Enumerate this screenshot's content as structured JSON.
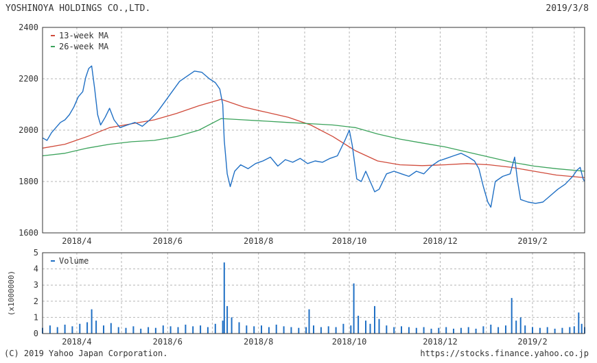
{
  "header": {
    "company": "YOSHINOYA HOLDINGS CO.,LTD.",
    "date": "2019/3/8"
  },
  "footer": {
    "copyright": "(C) 2019 Yahoo Japan Corporation.",
    "url": "https://stocks.finance.yahoo.co.jp"
  },
  "colors": {
    "price": "#1f6fc4",
    "ma13": "#d04a3a",
    "ma26": "#3aa25a",
    "volume": "#1f6fc4",
    "grid": "#b5b5b5",
    "axis": "#333333"
  },
  "chart_data": [
    {
      "type": "line",
      "x_range": [
        "2018-03-09",
        "2019-03-08"
      ],
      "ylim": [
        1600,
        2400
      ],
      "yticks": [
        1600,
        1800,
        2000,
        2200,
        2400
      ],
      "xticks": [
        {
          "date": "2018-04-01",
          "label": "2018/4"
        },
        {
          "date": "2018-06-01",
          "label": "2018/6"
        },
        {
          "date": "2018-08-01",
          "label": "2018/8"
        },
        {
          "date": "2018-10-01",
          "label": "2018/10"
        },
        {
          "date": "2018-12-01",
          "label": "2018/12"
        },
        {
          "date": "2019-02-01",
          "label": "2019/2"
        }
      ],
      "grid": true,
      "legend": {
        "position": "top-left",
        "entries": [
          "13-week MA",
          "26-week MA"
        ]
      },
      "series": [
        {
          "name": "13-week MA",
          "color_key": "ma13",
          "points": [
            [
              "2018-03-09",
              1930
            ],
            [
              "2018-03-24",
              1945
            ],
            [
              "2018-04-08",
              1975
            ],
            [
              "2018-04-23",
              2010
            ],
            [
              "2018-05-08",
              2025
            ],
            [
              "2018-05-23",
              2040
            ],
            [
              "2018-06-07",
              2065
            ],
            [
              "2018-06-22",
              2095
            ],
            [
              "2018-07-07",
              2120
            ],
            [
              "2018-07-22",
              2090
            ],
            [
              "2018-08-06",
              2070
            ],
            [
              "2018-08-21",
              2050
            ],
            [
              "2018-09-05",
              2020
            ],
            [
              "2018-09-20",
              1975
            ],
            [
              "2018-10-05",
              1920
            ],
            [
              "2018-10-20",
              1880
            ],
            [
              "2018-11-04",
              1865
            ],
            [
              "2018-11-19",
              1862
            ],
            [
              "2018-12-04",
              1865
            ],
            [
              "2018-12-19",
              1870
            ],
            [
              "2019-01-03",
              1865
            ],
            [
              "2019-01-18",
              1855
            ],
            [
              "2019-02-02",
              1840
            ],
            [
              "2019-02-17",
              1825
            ],
            [
              "2019-03-08",
              1815
            ]
          ]
        },
        {
          "name": "26-week MA",
          "color_key": "ma26",
          "points": [
            [
              "2018-03-09",
              1900
            ],
            [
              "2018-03-24",
              1910
            ],
            [
              "2018-04-08",
              1930
            ],
            [
              "2018-04-23",
              1945
            ],
            [
              "2018-05-08",
              1955
            ],
            [
              "2018-05-23",
              1960
            ],
            [
              "2018-06-07",
              1975
            ],
            [
              "2018-06-22",
              2000
            ],
            [
              "2018-07-07",
              2045
            ],
            [
              "2018-07-22",
              2040
            ],
            [
              "2018-08-06",
              2035
            ],
            [
              "2018-08-21",
              2030
            ],
            [
              "2018-09-05",
              2025
            ],
            [
              "2018-09-20",
              2020
            ],
            [
              "2018-10-05",
              2010
            ],
            [
              "2018-10-20",
              1985
            ],
            [
              "2018-11-04",
              1965
            ],
            [
              "2018-11-19",
              1950
            ],
            [
              "2018-12-04",
              1935
            ],
            [
              "2018-12-19",
              1915
            ],
            [
              "2019-01-03",
              1895
            ],
            [
              "2019-01-18",
              1875
            ],
            [
              "2019-02-02",
              1860
            ],
            [
              "2019-02-17",
              1850
            ],
            [
              "2019-03-08",
              1840
            ]
          ]
        },
        {
          "name": "",
          "color_key": "price",
          "points": [
            [
              "2018-03-09",
              1970
            ],
            [
              "2018-03-12",
              1960
            ],
            [
              "2018-03-15",
              1990
            ],
            [
              "2018-03-18",
              2010
            ],
            [
              "2018-03-21",
              2030
            ],
            [
              "2018-03-24",
              2040
            ],
            [
              "2018-03-27",
              2060
            ],
            [
              "2018-03-30",
              2090
            ],
            [
              "2018-04-02",
              2130
            ],
            [
              "2018-04-05",
              2150
            ],
            [
              "2018-04-07",
              2205
            ],
            [
              "2018-04-09",
              2240
            ],
            [
              "2018-04-11",
              2250
            ],
            [
              "2018-04-13",
              2160
            ],
            [
              "2018-04-15",
              2060
            ],
            [
              "2018-04-17",
              2020
            ],
            [
              "2018-04-20",
              2050
            ],
            [
              "2018-04-23",
              2085
            ],
            [
              "2018-04-26",
              2040
            ],
            [
              "2018-04-30",
              2010
            ],
            [
              "2018-05-05",
              2020
            ],
            [
              "2018-05-10",
              2030
            ],
            [
              "2018-05-15",
              2015
            ],
            [
              "2018-05-20",
              2040
            ],
            [
              "2018-05-25",
              2070
            ],
            [
              "2018-05-30",
              2110
            ],
            [
              "2018-06-04",
              2150
            ],
            [
              "2018-06-09",
              2190
            ],
            [
              "2018-06-14",
              2210
            ],
            [
              "2018-06-19",
              2230
            ],
            [
              "2018-06-24",
              2225
            ],
            [
              "2018-06-29",
              2200
            ],
            [
              "2018-07-03",
              2185
            ],
            [
              "2018-07-06",
              2160
            ],
            [
              "2018-07-08",
              2100
            ],
            [
              "2018-07-09",
              1960
            ],
            [
              "2018-07-11",
              1830
            ],
            [
              "2018-07-13",
              1780
            ],
            [
              "2018-07-16",
              1840
            ],
            [
              "2018-07-20",
              1865
            ],
            [
              "2018-07-25",
              1850
            ],
            [
              "2018-07-30",
              1870
            ],
            [
              "2018-08-04",
              1880
            ],
            [
              "2018-08-09",
              1895
            ],
            [
              "2018-08-14",
              1860
            ],
            [
              "2018-08-19",
              1885
            ],
            [
              "2018-08-24",
              1875
            ],
            [
              "2018-08-29",
              1890
            ],
            [
              "2018-09-03",
              1870
            ],
            [
              "2018-09-08",
              1880
            ],
            [
              "2018-09-13",
              1875
            ],
            [
              "2018-09-18",
              1890
            ],
            [
              "2018-09-23",
              1900
            ],
            [
              "2018-09-28",
              1960
            ],
            [
              "2018-10-01",
              2000
            ],
            [
              "2018-10-03",
              1940
            ],
            [
              "2018-10-06",
              1810
            ],
            [
              "2018-10-09",
              1800
            ],
            [
              "2018-10-12",
              1840
            ],
            [
              "2018-10-15",
              1800
            ],
            [
              "2018-10-18",
              1760
            ],
            [
              "2018-10-21",
              1770
            ],
            [
              "2018-10-26",
              1830
            ],
            [
              "2018-10-31",
              1840
            ],
            [
              "2018-11-05",
              1830
            ],
            [
              "2018-11-10",
              1820
            ],
            [
              "2018-11-15",
              1840
            ],
            [
              "2018-11-20",
              1830
            ],
            [
              "2018-11-25",
              1860
            ],
            [
              "2018-11-30",
              1880
            ],
            [
              "2018-12-05",
              1890
            ],
            [
              "2018-12-10",
              1900
            ],
            [
              "2018-12-15",
              1910
            ],
            [
              "2018-12-20",
              1895
            ],
            [
              "2018-12-24",
              1880
            ],
            [
              "2018-12-27",
              1850
            ],
            [
              "2018-12-30",
              1780
            ],
            [
              "2019-01-02",
              1720
            ],
            [
              "2019-01-04",
              1700
            ],
            [
              "2019-01-07",
              1800
            ],
            [
              "2019-01-12",
              1820
            ],
            [
              "2019-01-17",
              1830
            ],
            [
              "2019-01-20",
              1895
            ],
            [
              "2019-01-22",
              1800
            ],
            [
              "2019-01-24",
              1730
            ],
            [
              "2019-01-29",
              1720
            ],
            [
              "2019-02-03",
              1715
            ],
            [
              "2019-02-08",
              1720
            ],
            [
              "2019-02-13",
              1745
            ],
            [
              "2019-02-18",
              1770
            ],
            [
              "2019-02-23",
              1790
            ],
            [
              "2019-02-28",
              1820
            ],
            [
              "2019-03-03",
              1845
            ],
            [
              "2019-03-05",
              1855
            ],
            [
              "2019-03-07",
              1810
            ],
            [
              "2019-03-08",
              1800
            ]
          ]
        }
      ]
    },
    {
      "type": "bar",
      "x_range": [
        "2018-03-09",
        "2019-03-08"
      ],
      "ylim": [
        0,
        5
      ],
      "yticks": [
        0,
        1,
        2,
        3,
        4,
        5
      ],
      "ylabel": "(x1000000)",
      "legend": {
        "position": "top-left",
        "entries": [
          "Volume"
        ]
      },
      "series": [
        {
          "name": "Volume",
          "color_key": "volume",
          "points": [
            [
              "2018-03-09",
              0.35
            ],
            [
              "2018-03-14",
              0.5
            ],
            [
              "2018-03-19",
              0.4
            ],
            [
              "2018-03-24",
              0.55
            ],
            [
              "2018-03-29",
              0.45
            ],
            [
              "2018-04-03",
              0.6
            ],
            [
              "2018-04-08",
              0.7
            ],
            [
              "2018-04-11",
              1.5
            ],
            [
              "2018-04-14",
              0.8
            ],
            [
              "2018-04-19",
              0.5
            ],
            [
              "2018-04-24",
              0.65
            ],
            [
              "2018-04-29",
              0.4
            ],
            [
              "2018-05-04",
              0.35
            ],
            [
              "2018-05-09",
              0.45
            ],
            [
              "2018-05-14",
              0.3
            ],
            [
              "2018-05-19",
              0.4
            ],
            [
              "2018-05-24",
              0.35
            ],
            [
              "2018-05-29",
              0.5
            ],
            [
              "2018-06-03",
              0.45
            ],
            [
              "2018-06-08",
              0.4
            ],
            [
              "2018-06-13",
              0.55
            ],
            [
              "2018-06-18",
              0.45
            ],
            [
              "2018-06-23",
              0.5
            ],
            [
              "2018-06-28",
              0.4
            ],
            [
              "2018-07-03",
              0.6
            ],
            [
              "2018-07-08",
              0.8
            ],
            [
              "2018-07-09",
              4.4
            ],
            [
              "2018-07-11",
              1.7
            ],
            [
              "2018-07-14",
              1.0
            ],
            [
              "2018-07-19",
              0.7
            ],
            [
              "2018-07-24",
              0.5
            ],
            [
              "2018-07-29",
              0.45
            ],
            [
              "2018-08-03",
              0.5
            ],
            [
              "2018-08-08",
              0.4
            ],
            [
              "2018-08-13",
              0.55
            ],
            [
              "2018-08-18",
              0.45
            ],
            [
              "2018-08-23",
              0.4
            ],
            [
              "2018-08-28",
              0.35
            ],
            [
              "2018-09-02",
              0.4
            ],
            [
              "2018-09-04",
              1.5
            ],
            [
              "2018-09-07",
              0.5
            ],
            [
              "2018-09-12",
              0.4
            ],
            [
              "2018-09-17",
              0.45
            ],
            [
              "2018-09-22",
              0.4
            ],
            [
              "2018-09-27",
              0.6
            ],
            [
              "2018-10-02",
              0.5
            ],
            [
              "2018-10-04",
              3.1
            ],
            [
              "2018-10-07",
              1.1
            ],
            [
              "2018-10-12",
              0.8
            ],
            [
              "2018-10-15",
              0.6
            ],
            [
              "2018-10-18",
              1.7
            ],
            [
              "2018-10-21",
              0.9
            ],
            [
              "2018-10-26",
              0.5
            ],
            [
              "2018-10-31",
              0.4
            ],
            [
              "2018-11-05",
              0.45
            ],
            [
              "2018-11-10",
              0.4
            ],
            [
              "2018-11-15",
              0.35
            ],
            [
              "2018-11-20",
              0.4
            ],
            [
              "2018-11-25",
              0.3
            ],
            [
              "2018-11-30",
              0.35
            ],
            [
              "2018-12-05",
              0.4
            ],
            [
              "2018-12-10",
              0.3
            ],
            [
              "2018-12-15",
              0.35
            ],
            [
              "2018-12-20",
              0.4
            ],
            [
              "2018-12-25",
              0.3
            ],
            [
              "2018-12-30",
              0.45
            ],
            [
              "2019-01-04",
              0.55
            ],
            [
              "2019-01-09",
              0.4
            ],
            [
              "2019-01-14",
              0.5
            ],
            [
              "2019-01-18",
              2.2
            ],
            [
              "2019-01-21",
              0.8
            ],
            [
              "2019-01-24",
              1.0
            ],
            [
              "2019-01-27",
              0.5
            ],
            [
              "2019-02-01",
              0.4
            ],
            [
              "2019-02-06",
              0.35
            ],
            [
              "2019-02-11",
              0.4
            ],
            [
              "2019-02-16",
              0.3
            ],
            [
              "2019-02-21",
              0.35
            ],
            [
              "2019-02-26",
              0.4
            ],
            [
              "2019-03-01",
              0.45
            ],
            [
              "2019-03-04",
              1.3
            ],
            [
              "2019-03-06",
              0.6
            ],
            [
              "2019-03-08",
              0.4
            ]
          ]
        }
      ]
    }
  ]
}
